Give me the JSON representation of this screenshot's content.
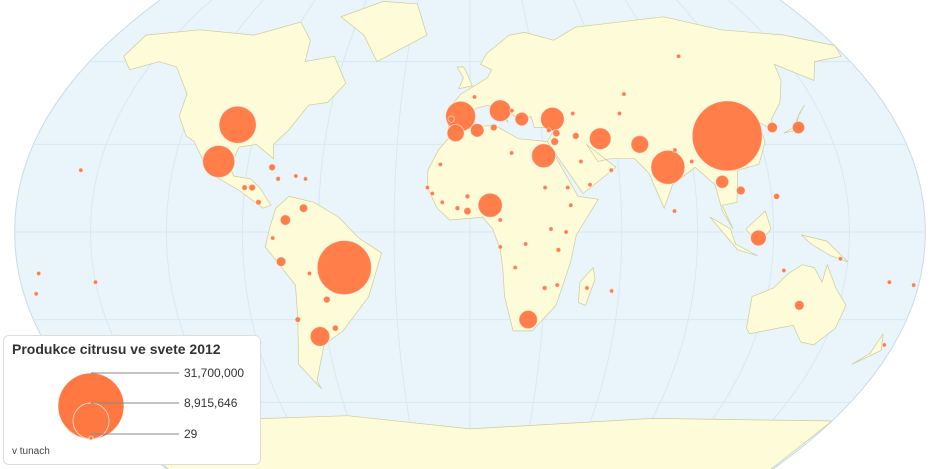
{
  "legend": {
    "title": "Produkce citrusu ve svete 2012",
    "max_label": "31,700,000",
    "mid_label": "8,915,646",
    "min_label": "29",
    "unit": "v tunach",
    "max_value": 31700000,
    "mid_value": 8915646,
    "min_value": 29
  },
  "colors": {
    "ocean": "#eaf4fb",
    "land": "#fefbd8",
    "border": "#cccc99",
    "bubble": "#ff7741",
    "grid": "#d8e8f2"
  },
  "chart_data": {
    "type": "bubble-map",
    "projection": "robinson",
    "bubbles": [
      {
        "lat": 33,
        "lon": 107,
        "value": 31700000
      },
      {
        "lat": -12,
        "lon": -50,
        "value": 19000000
      },
      {
        "lat": 37,
        "lon": -98,
        "value": 9000000
      },
      {
        "lat": 22,
        "lon": 80,
        "value": 7500000
      },
      {
        "lat": 24,
        "lon": -102,
        "value": 6700000
      },
      {
        "lat": 40,
        "lon": -4,
        "value": 5800000
      },
      {
        "lat": 26,
        "lon": 30,
        "value": 3700000
      },
      {
        "lat": 39,
        "lon": 35,
        "value": 3600000
      },
      {
        "lat": 9,
        "lon": 8,
        "value": 3800000
      },
      {
        "lat": 32,
        "lon": 54,
        "value": 3000000
      },
      {
        "lat": 42,
        "lon": 13,
        "value": 3000000
      },
      {
        "lat": -30,
        "lon": 24,
        "value": 2200000
      },
      {
        "lat": -36,
        "lon": -63,
        "value": 2500000
      },
      {
        "lat": 30,
        "lon": 70,
        "value": 2000000
      },
      {
        "lat": 34,
        "lon": -6,
        "value": 1900000
      },
      {
        "lat": 35,
        "lon": 3,
        "value": 1200000
      },
      {
        "lat": 39,
        "lon": 22,
        "value": 1200000
      },
      {
        "lat": 17,
        "lon": 101,
        "value": 1100000
      },
      {
        "lat": -2,
        "lon": 114,
        "value": 1600000
      },
      {
        "lat": 36,
        "lon": 138,
        "value": 1000000
      },
      {
        "lat": 36,
        "lon": 127,
        "value": 700000
      },
      {
        "lat": -25,
        "lon": 134,
        "value": 600000
      },
      {
        "lat": 4,
        "lon": -73,
        "value": 700000
      },
      {
        "lat": -10,
        "lon": -75,
        "value": 600000
      },
      {
        "lat": -23,
        "lon": -58,
        "value": 300000
      },
      {
        "lat": -33,
        "lon": -56,
        "value": 250000
      },
      {
        "lat": 33,
        "lon": 44,
        "value": 300000
      },
      {
        "lat": 34,
        "lon": 36,
        "value": 350000
      },
      {
        "lat": 31,
        "lon": 35,
        "value": 400000
      },
      {
        "lat": 8,
        "lon": -66,
        "value": 450000
      },
      {
        "lat": 22,
        "lon": -80,
        "value": 300000
      },
      {
        "lat": 15,
        "lon": -87,
        "value": 300000
      },
      {
        "lat": 10,
        "lon": -84,
        "value": 200000
      },
      {
        "lat": 12,
        "lon": -1,
        "value": 150000
      },
      {
        "lat": 7,
        "lon": -1,
        "value": 350000
      },
      {
        "lat": 8,
        "lon": -5,
        "value": 150000
      },
      {
        "lat": -6,
        "lon": 35,
        "value": 150000
      },
      {
        "lat": -19,
        "lon": 30,
        "value": 150000
      },
      {
        "lat": 14,
        "lon": 108,
        "value": 500000
      },
      {
        "lat": 12,
        "lon": 122,
        "value": 250000
      },
      {
        "lat": 15,
        "lon": -90,
        "value": 200000
      },
      {
        "lat": 18,
        "lon": -77,
        "value": 150000
      },
      {
        "lat": 19,
        "lon": -70,
        "value": 120000
      },
      {
        "lat": 18,
        "lon": -66,
        "value": 80000
      },
      {
        "lat": -39,
        "lon": 176,
        "value": 30000
      },
      {
        "lat": -18,
        "lon": 178,
        "value": 10000
      },
      {
        "lat": -17,
        "lon": -150,
        "value": 3000
      },
      {
        "lat": 21,
        "lon": -157,
        "value": 5000
      },
      {
        "lat": -20,
        "lon": 57,
        "value": 5000
      },
      {
        "lat": -19,
        "lon": 47,
        "value": 80000
      },
      {
        "lat": 15,
        "lon": 39,
        "value": 20000
      },
      {
        "lat": 9,
        "lon": 40,
        "value": 50000
      },
      {
        "lat": 0,
        "lon": 38,
        "value": 80000
      },
      {
        "lat": 1,
        "lon": 32,
        "value": 60000
      },
      {
        "lat": -4,
        "lon": 22,
        "value": 100000
      },
      {
        "lat": -12,
        "lon": 18,
        "value": 60000
      },
      {
        "lat": -18,
        "lon": 35,
        "value": 40000
      },
      {
        "lat": 16,
        "lon": 48,
        "value": 40000
      },
      {
        "lat": 24,
        "lon": 45,
        "value": 60000
      },
      {
        "lat": 21,
        "lon": 57,
        "value": 50000
      },
      {
        "lat": 28,
        "lon": 84,
        "value": 40000
      },
      {
        "lat": 24,
        "lon": 90,
        "value": 80000
      },
      {
        "lat": 7,
        "lon": 81,
        "value": 30000
      },
      {
        "lat": 41,
        "lon": 44,
        "value": 40000
      },
      {
        "lat": 41,
        "lon": 64,
        "value": 20000
      },
      {
        "lat": 48,
        "lon": 68,
        "value": 5000
      },
      {
        "lat": 62,
        "lon": 100,
        "value": 1000
      },
      {
        "lat": 47,
        "lon": 2,
        "value": 30000
      },
      {
        "lat": 39,
        "lon": -8,
        "value": 250000
      },
      {
        "lat": 42,
        "lon": 18,
        "value": 20000
      },
      {
        "lat": 35,
        "lon": 33,
        "value": 150000
      },
      {
        "lat": 36,
        "lon": 10,
        "value": 300000
      },
      {
        "lat": 27,
        "lon": 17,
        "value": 50000
      },
      {
        "lat": 15,
        "lon": 30,
        "value": 60000
      },
      {
        "lat": 13,
        "lon": -15,
        "value": 10000
      },
      {
        "lat": 10,
        "lon": -11,
        "value": 80000
      },
      {
        "lat": 15,
        "lon": -17,
        "value": 20000
      },
      {
        "lat": 23,
        "lon": -12,
        "value": 5000
      },
      {
        "lat": -14,
        "lon": -64,
        "value": 80000
      },
      {
        "lat": -2,
        "lon": -78,
        "value": 100000
      },
      {
        "lat": -30,
        "lon": -71,
        "value": 200000
      },
      {
        "lat": -5,
        "lon": 12,
        "value": 30000
      },
      {
        "lat": 4,
        "lon": 12,
        "value": 80000
      },
      {
        "lat": -13,
        "lon": 125,
        "value": 5000
      },
      {
        "lat": -9,
        "lon": 147,
        "value": 10000
      },
      {
        "lat": -17,
        "lon": 168,
        "value": 3000
      },
      {
        "lat": -14,
        "lon": -172,
        "value": 2000
      },
      {
        "lat": -21,
        "lon": -175,
        "value": 2000
      }
    ]
  }
}
